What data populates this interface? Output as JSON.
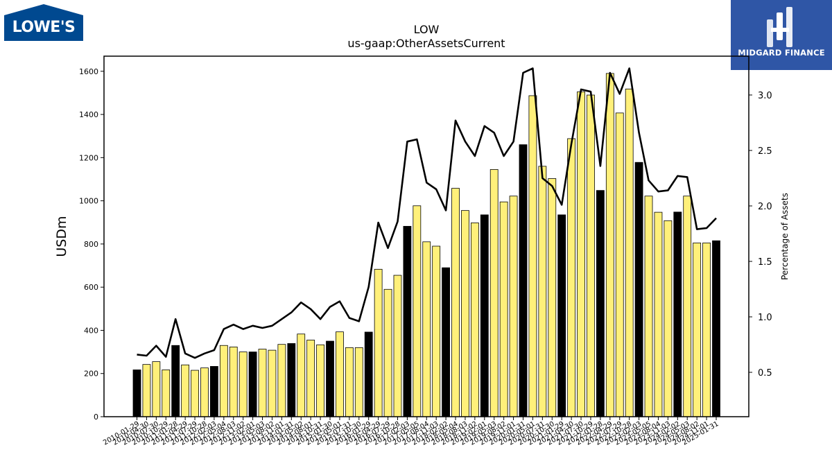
{
  "brand": {
    "left_logo_text": "LOWE'S",
    "left_logo_color": "#004990",
    "right_logo_text": "MIDGARD FINANCE",
    "right_logo_color": "#2f56a6"
  },
  "chart_data": {
    "type": "bar",
    "title": "LOW",
    "subtitle": "us-gaap:OtherAssetsCurrent",
    "ylabel": "USDm",
    "y2label": "Percentage of Assets",
    "ylim": [
      0,
      1670
    ],
    "y2lim": [
      0.1,
      3.35
    ],
    "yticks": [
      0,
      200,
      400,
      600,
      800,
      1000,
      1200,
      1400,
      1600
    ],
    "y2ticks": [
      "0.5",
      "1.0",
      "1.5",
      "2.0",
      "2.5",
      "3.0"
    ],
    "grid": false,
    "bar_color_quarter": "#fff07a",
    "bar_color_annual": "#000000",
    "line_color": "#000000",
    "categories": [
      "2010-01-29",
      "2010-04-30",
      "2010-07-30",
      "2010-10-29",
      "2011-01-28",
      "2011-04-29",
      "2011-07-29",
      "2011-10-28",
      "2012-02-03",
      "2012-05-04",
      "2012-08-03",
      "2012-11-02",
      "2013-02-01",
      "2013-05-03",
      "2013-08-02",
      "2013-11-01",
      "2014-01-31",
      "2014-05-02",
      "2014-08-01",
      "2014-10-31",
      "2015-01-30",
      "2015-05-01",
      "2015-07-31",
      "2015-10-30",
      "2016-01-29",
      "2016-04-29",
      "2016-07-29",
      "2016-10-28",
      "2017-02-03",
      "2017-05-05",
      "2017-08-04",
      "2017-11-03",
      "2018-02-02",
      "2018-05-04",
      "2018-08-03",
      "2018-11-02",
      "2019-02-01",
      "2019-05-03",
      "2019-08-02",
      "2019-11-01",
      "2020-01-31",
      "2020-05-01",
      "2020-07-31",
      "2020-10-30",
      "2021-01-29",
      "2021-04-30",
      "2021-07-30",
      "2021-10-29",
      "2022-01-28",
      "2022-04-29",
      "2022-07-29",
      "2022-10-28",
      "2023-02-03",
      "2023-05-05",
      "2023-08-04",
      "2023-11-03",
      "2024-02-02",
      "2024-05-03",
      "2024-08-02",
      "2024-11-01",
      "2025-01-31"
    ],
    "tick_labels": [
      "2010-01-29",
      "2010-04-30",
      "2010-07-30",
      "2010-10-29",
      "2011-01-28",
      "2011-04-29",
      "2011-07-29",
      "2011-10-28",
      "2012-02-03",
      "2012-05-04",
      "2012-08-03",
      "2012-11-02",
      "2013-02-01",
      "2013-05-03",
      "2013-08-02",
      "2013-11-01",
      "2014-01-31",
      "2014-05-02",
      "2014-08-01",
      "2014-10-31",
      "2015-01-30",
      "2015-05-01",
      "2015-07-31",
      "2015-10-30",
      "2016-01-29",
      "2016-04-29",
      "2016-07-29",
      "2016-10-28",
      "2017-02-03",
      "2017-05-05",
      "2017-08-04",
      "2017-11-03",
      "2018-02-02",
      "2018-05-04",
      "2018-08-03",
      "2018-11-02",
      "2019-02-01",
      "2019-05-03",
      "2019-08-02",
      "2019-11-01",
      "2020-01-31",
      "2020-05-01",
      "2020-07-31",
      "2020-10-30",
      "2021-01-29",
      "2021-04-30",
      "2021-07-30",
      "2021-10-29",
      "2022-01-28",
      "2022-04-29",
      "2022-07-29",
      "2022-10-28",
      "2023-02-03",
      "2023-05-05",
      "2023-08-04",
      "2023-11-03",
      "2024-02-02",
      "2024-05-03",
      "2024-08-02",
      "2024-11-01",
      "2025-01-31"
    ],
    "annual_flags": [
      1,
      0,
      0,
      0,
      1,
      0,
      0,
      0,
      1,
      0,
      0,
      0,
      1,
      0,
      0,
      0,
      1,
      0,
      0,
      0,
      1,
      0,
      0,
      0,
      1,
      0,
      0,
      0,
      1,
      0,
      0,
      0,
      1,
      0,
      0,
      0,
      1,
      0,
      0,
      0,
      1,
      0,
      0,
      0,
      1,
      0,
      0,
      0,
      1,
      0,
      0,
      0,
      1,
      0,
      0,
      0,
      1,
      0,
      0,
      0,
      1
    ],
    "series": [
      {
        "name": "USDm",
        "values": [
          217,
          242,
          255,
          217,
          330,
          240,
          215,
          226,
          233,
          330,
          323,
          300,
          300,
          313,
          308,
          335,
          339,
          383,
          355,
          333,
          350,
          393,
          320,
          320,
          392,
          683,
          590,
          655,
          882,
          977,
          810,
          790,
          690,
          1058,
          955,
          898,
          935,
          1145,
          995,
          1022,
          1260,
          1487,
          1160,
          1103,
          935,
          1288,
          1505,
          1490,
          1048,
          1590,
          1407,
          1518,
          1178,
          1022,
          947,
          908,
          948,
          1022,
          805,
          805,
          815
        ]
      },
      {
        "name": "Percentage of Assets",
        "values": [
          0.66,
          0.65,
          0.74,
          0.64,
          0.98,
          0.67,
          0.63,
          0.67,
          0.7,
          0.89,
          0.93,
          0.89,
          0.92,
          0.9,
          0.92,
          0.98,
          1.04,
          1.13,
          1.07,
          0.98,
          1.09,
          1.14,
          0.99,
          0.96,
          1.27,
          1.85,
          1.62,
          1.86,
          2.58,
          2.6,
          2.21,
          2.15,
          1.96,
          2.77,
          2.58,
          2.45,
          2.72,
          2.66,
          2.45,
          2.58,
          3.2,
          3.24,
          2.25,
          2.18,
          2.01,
          2.56,
          3.05,
          3.03,
          2.36,
          3.2,
          3.01,
          3.24,
          2.66,
          2.23,
          2.13,
          2.14,
          2.27,
          2.26,
          1.79,
          1.8,
          1.89
        ]
      }
    ]
  }
}
